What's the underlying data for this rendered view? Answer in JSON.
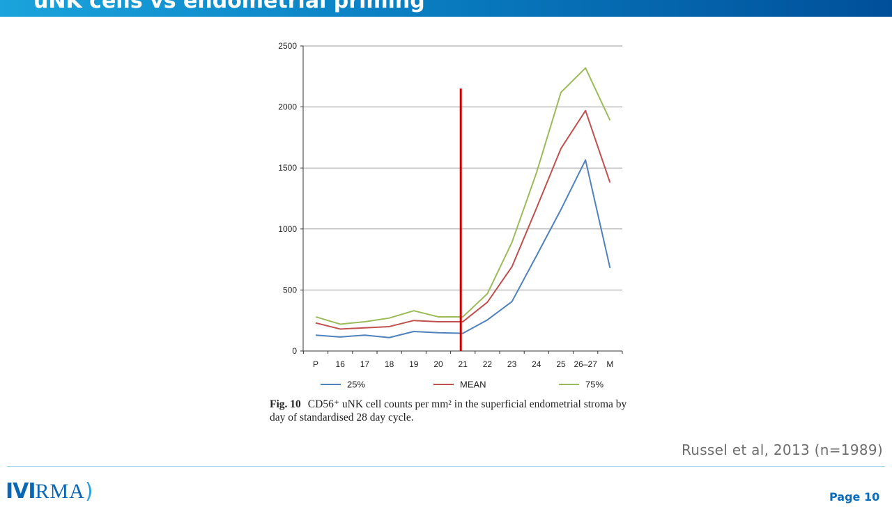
{
  "slide": {
    "title": "uNK cells vs endometrial priming",
    "citation": "Russel et al, 2013 (n=1989)",
    "page_label": "Page 10",
    "logo": {
      "part1": "IVI",
      "part2": "RMA"
    }
  },
  "caption": {
    "fig_label": "Fig. 10",
    "text": "CD56⁺ uNK cell counts per mm² in the superficial endometrial stroma by day of standardised 28 day cycle."
  },
  "colors": {
    "title_bar": "#0a7fc2",
    "series_25": "#4f81bd",
    "series_mean": "#c0504d",
    "series_75": "#9bbb59",
    "marker_line": "#cc0000",
    "grid": "#999999"
  },
  "chart_data": {
    "type": "line",
    "categories": [
      "P",
      "16",
      "17",
      "18",
      "19",
      "20",
      "21",
      "22",
      "23",
      "24",
      "25",
      "26–27",
      "M"
    ],
    "series": [
      {
        "name": "25%",
        "color": "#4f81bd",
        "values": [
          130,
          115,
          130,
          110,
          160,
          150,
          145,
          255,
          405,
          780,
          1160,
          1565,
          680
        ]
      },
      {
        "name": "MEAN",
        "color": "#c0504d",
        "values": [
          230,
          180,
          190,
          200,
          250,
          240,
          240,
          400,
          690,
          1170,
          1660,
          1970,
          1380
        ]
      },
      {
        "name": "75%",
        "color": "#9bbb59",
        "values": [
          280,
          220,
          240,
          270,
          330,
          280,
          280,
          470,
          890,
          1460,
          2120,
          2320,
          1890
        ]
      }
    ],
    "ylim": [
      0,
      2500
    ],
    "yticks": [
      0,
      500,
      1000,
      1500,
      2000,
      2500
    ],
    "grid": true,
    "legend_position": "bottom",
    "annotations": [
      {
        "type": "vertical-line",
        "x": "21",
        "y_top": 2100,
        "color": "#cc0000"
      }
    ]
  }
}
